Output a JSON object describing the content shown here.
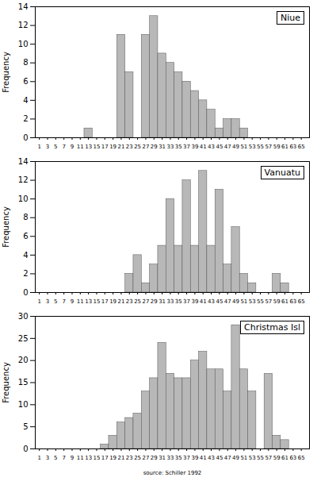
{
  "chart_data": [
    {
      "type": "histogram",
      "title": "Niue",
      "ylabel": "Frequency",
      "bins": [
        0,
        2,
        4,
        6,
        8,
        10,
        12,
        14,
        16,
        18,
        20,
        22,
        24,
        26,
        28,
        30,
        32,
        34,
        36,
        38,
        40,
        42,
        44,
        46,
        48,
        50,
        52,
        54,
        56,
        58,
        60,
        62,
        64,
        66
      ],
      "values": [
        0,
        0,
        0,
        0,
        0,
        0,
        1,
        0,
        0,
        0,
        11,
        7,
        0,
        11,
        13,
        9,
        8,
        7,
        6,
        5,
        4,
        3,
        1,
        2,
        2,
        1,
        0,
        0,
        0,
        0,
        0,
        0,
        0
      ],
      "color": "#b8b8b8",
      "xlim": [
        0,
        67
      ],
      "xticks": [
        1,
        3,
        5,
        7,
        9,
        11,
        13,
        15,
        17,
        19,
        21,
        23,
        25,
        27,
        29,
        31,
        33,
        35,
        37,
        39,
        41,
        43,
        45,
        47,
        49,
        51,
        53,
        55,
        57,
        59,
        61,
        63,
        65
      ],
      "ylim": [
        0,
        14
      ],
      "yticks": [
        0,
        2,
        4,
        6,
        8,
        10,
        12,
        14
      ]
    },
    {
      "type": "histogram",
      "title": "Vanuatu",
      "ylabel": "Frequency",
      "bins": [
        0,
        2,
        4,
        6,
        8,
        10,
        12,
        14,
        16,
        18,
        20,
        22,
        24,
        26,
        28,
        30,
        32,
        34,
        36,
        38,
        40,
        42,
        44,
        46,
        48,
        50,
        52,
        54,
        56,
        58,
        60,
        62,
        64,
        66
      ],
      "values": [
        0,
        0,
        0,
        0,
        0,
        0,
        0,
        0,
        0,
        0,
        0,
        2,
        4,
        1,
        3,
        5,
        10,
        5,
        12,
        5,
        13,
        5,
        11,
        3,
        7,
        2,
        1,
        0,
        0,
        2,
        1,
        0,
        0
      ],
      "color": "#b8b8b8",
      "xlim": [
        0,
        67
      ],
      "xticks": [
        1,
        3,
        5,
        7,
        9,
        11,
        13,
        15,
        17,
        19,
        21,
        23,
        25,
        27,
        29,
        31,
        33,
        35,
        37,
        39,
        41,
        43,
        45,
        47,
        49,
        51,
        53,
        55,
        57,
        59,
        61,
        63,
        65
      ],
      "ylim": [
        0,
        14
      ],
      "yticks": [
        0,
        2,
        4,
        6,
        8,
        10,
        12,
        14
      ]
    },
    {
      "type": "histogram",
      "title": "Christmas Isl",
      "ylabel": "Frequency",
      "xlabel": "source: Schiller 1992",
      "bins": [
        0,
        2,
        4,
        6,
        8,
        10,
        12,
        14,
        16,
        18,
        20,
        22,
        24,
        26,
        28,
        30,
        32,
        34,
        36,
        38,
        40,
        42,
        44,
        46,
        48,
        50,
        52,
        54,
        56,
        58,
        60,
        62,
        64,
        66
      ],
      "values": [
        0,
        0,
        0,
        0,
        0,
        0,
        0,
        0,
        1,
        3,
        6,
        7,
        8,
        13,
        16,
        24,
        17,
        16,
        16,
        20,
        22,
        18,
        18,
        13,
        28,
        18,
        13,
        0,
        17,
        3,
        2,
        0,
        0
      ],
      "color": "#b8b8b8",
      "xlim": [
        0,
        67
      ],
      "xticks": [
        1,
        3,
        5,
        7,
        9,
        11,
        13,
        15,
        17,
        19,
        21,
        23,
        25,
        27,
        29,
        31,
        33,
        35,
        37,
        39,
        41,
        43,
        45,
        47,
        49,
        51,
        53,
        55,
        57,
        59,
        61,
        63,
        65
      ],
      "ylim": [
        0,
        30
      ],
      "yticks": [
        0,
        5,
        10,
        15,
        20,
        25,
        30
      ]
    }
  ]
}
